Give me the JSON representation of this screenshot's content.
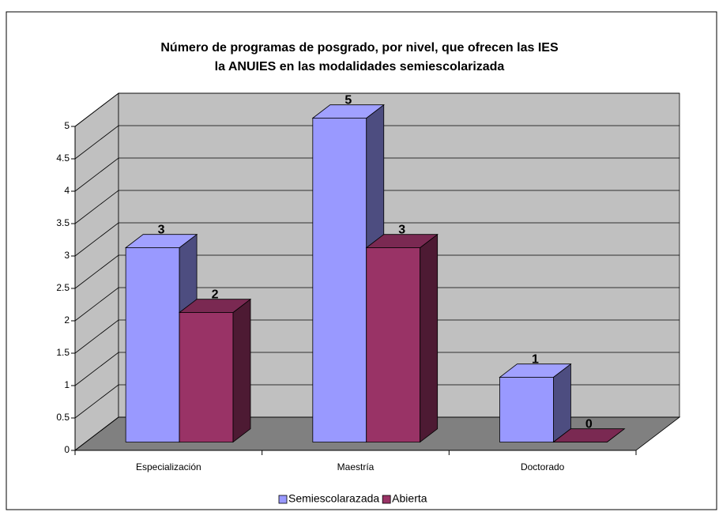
{
  "chart_data": {
    "type": "bar3d",
    "title": [
      "Número de programas de posgrado, por nivel, que ofrecen las IES",
      "la ANUIES en las modalidades semiescolarizada"
    ],
    "categories": [
      "Especialización",
      "Maestría",
      "Doctorado"
    ],
    "series": [
      {
        "name": "Semiescolarazada",
        "color": "#9999ff",
        "values": [
          3,
          5,
          1
        ]
      },
      {
        "name": "Abierta",
        "color": "#993366",
        "values": [
          2,
          3,
          0
        ]
      }
    ],
    "ylim": [
      0,
      5
    ],
    "yticks": [
      0,
      0.5,
      1,
      1.5,
      2,
      2.5,
      3,
      3.5,
      4,
      4.5,
      5
    ],
    "grid": true,
    "legend": "bottom"
  }
}
